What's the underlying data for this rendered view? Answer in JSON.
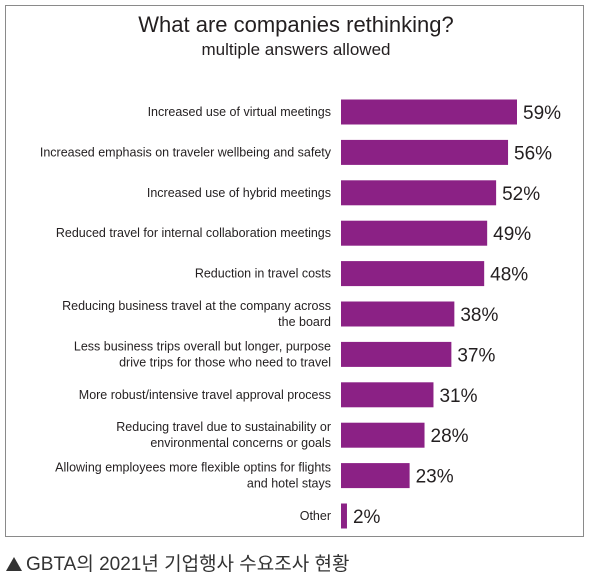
{
  "chart_data": {
    "type": "bar",
    "orientation": "horizontal",
    "title": "What are companies rethinking?",
    "subtitle": "multiple answers allowed",
    "categories": [
      [
        "Increased use of virtual meetings"
      ],
      [
        "Increased emphasis on traveler wellbeing and safety"
      ],
      [
        "Increased use of hybrid meetings"
      ],
      [
        "Reduced travel for internal collaboration meetings"
      ],
      [
        "Reduction in travel costs"
      ],
      [
        "Reducing business travel at the company across",
        "the board"
      ],
      [
        "Less business trips overall but longer, purpose",
        "drive trips for those who need to travel"
      ],
      [
        "More robust/intensive travel approval process"
      ],
      [
        "Reducing travel due to sustainability or",
        "environmental concerns or goals"
      ],
      [
        "Allowing employees more flexible optins for flights",
        "and hotel stays"
      ],
      [
        "Other"
      ]
    ],
    "values": [
      59,
      56,
      52,
      49,
      48,
      38,
      37,
      31,
      28,
      23,
      2
    ],
    "value_labels": [
      "59%",
      "56%",
      "52%",
      "49%",
      "48%",
      "38%",
      "37%",
      "31%",
      "28%",
      "23%",
      "2%"
    ],
    "unit": "%",
    "bar_color": "#8b2185",
    "grid": false,
    "legend": "none"
  },
  "caption": {
    "icon": "triangle-up-icon",
    "text": "GBTA의 2021년 기업행사 수요조사 현황"
  }
}
